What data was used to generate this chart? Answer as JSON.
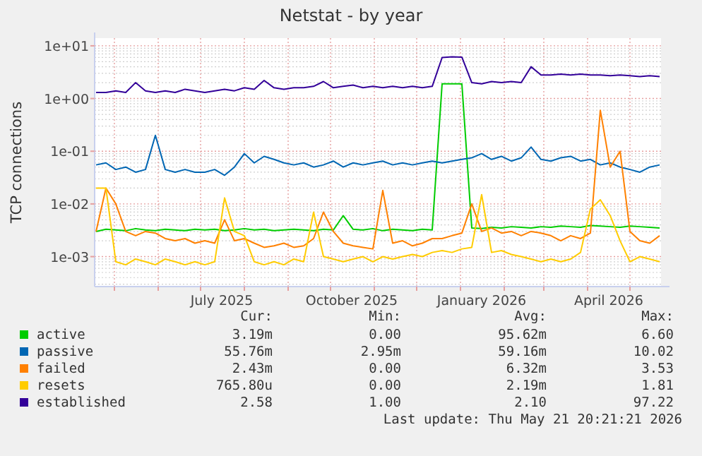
{
  "chart_data": {
    "type": "line",
    "title": "Netstat - by year",
    "ylabel": "TCP connections",
    "log": "y",
    "grid": true,
    "legend": "bottom",
    "marker": "none",
    "line_style": "solid",
    "xlim": [
      "2025-04-17",
      "2026-05-23"
    ],
    "xticks": [
      {
        "value": "2025-05-01",
        "label": null
      },
      {
        "value": "2025-06-01",
        "label": null
      },
      {
        "value": "2025-07-01",
        "label": null
      },
      {
        "value": "2025-07-16",
        "label": "July 2025"
      },
      {
        "value": "2025-08-01",
        "label": null
      },
      {
        "value": "2025-09-01",
        "label": null
      },
      {
        "value": "2025-10-01",
        "label": null
      },
      {
        "value": "2025-10-16",
        "label": "October 2025"
      },
      {
        "value": "2025-11-01",
        "label": null
      },
      {
        "value": "2025-12-01",
        "label": null
      },
      {
        "value": "2026-01-01",
        "label": null
      },
      {
        "value": "2026-01-16",
        "label": "January 2026"
      },
      {
        "value": "2026-02-01",
        "label": null
      },
      {
        "value": "2026-03-01",
        "label": null
      },
      {
        "value": "2026-04-01",
        "label": null
      },
      {
        "value": "2026-04-16",
        "label": "April 2026"
      },
      {
        "value": "2026-05-01",
        "label": null
      }
    ],
    "ylim": [
      0.00027,
      14
    ],
    "yticks": [
      {
        "value": 0.001,
        "label": "1e-03"
      },
      {
        "value": 0.01,
        "label": "1e-02"
      },
      {
        "value": 0.1,
        "label": "1e-01"
      },
      {
        "value": 1,
        "label": "1e+00"
      },
      {
        "value": 10,
        "label": "1e+01"
      }
    ],
    "x": [
      "2025-04-18",
      "2025-04-25",
      "2025-05-02",
      "2025-05-09",
      "2025-05-16",
      "2025-05-23",
      "2025-05-30",
      "2025-06-06",
      "2025-06-13",
      "2025-06-20",
      "2025-06-27",
      "2025-07-04",
      "2025-07-11",
      "2025-07-18",
      "2025-07-25",
      "2025-08-01",
      "2025-08-08",
      "2025-08-15",
      "2025-08-22",
      "2025-08-29",
      "2025-09-05",
      "2025-09-12",
      "2025-09-19",
      "2025-09-26",
      "2025-10-03",
      "2025-10-10",
      "2025-10-17",
      "2025-10-24",
      "2025-10-31",
      "2025-11-07",
      "2025-11-14",
      "2025-11-21",
      "2025-11-28",
      "2025-12-05",
      "2025-12-12",
      "2025-12-19",
      "2025-12-26",
      "2026-01-02",
      "2026-01-09",
      "2026-01-16",
      "2026-01-23",
      "2026-01-30",
      "2026-02-06",
      "2026-02-13",
      "2026-02-20",
      "2026-02-27",
      "2026-03-06",
      "2026-03-13",
      "2026-03-20",
      "2026-03-27",
      "2026-04-03",
      "2026-04-10",
      "2026-04-17",
      "2026-04-24",
      "2026-05-01",
      "2026-05-08",
      "2026-05-15",
      "2026-05-22"
    ],
    "series": [
      {
        "name": "active",
        "color": "#00cc00",
        "values": [
          0.003,
          0.0033,
          0.0032,
          0.0031,
          0.0034,
          0.0032,
          0.0031,
          0.0033,
          0.0032,
          0.0031,
          0.0033,
          0.0032,
          0.0033,
          0.0031,
          0.0032,
          0.0034,
          0.0032,
          0.0033,
          0.0031,
          0.0032,
          0.0033,
          0.0032,
          0.0031,
          0.0033,
          0.0032,
          0.006,
          0.0033,
          0.0032,
          0.0034,
          0.0031,
          0.0033,
          0.0032,
          0.0031,
          0.0033,
          0.0032,
          1.9,
          1.9,
          1.9,
          0.0035,
          0.0034,
          0.0036,
          0.0035,
          0.0037,
          0.0036,
          0.0035,
          0.0037,
          0.0036,
          0.0038,
          0.0037,
          0.0036,
          0.0039,
          0.0038,
          0.0037,
          0.0036,
          0.0038,
          0.0037,
          0.0036,
          0.0035
        ]
      },
      {
        "name": "passive",
        "color": "#0066b3",
        "values": [
          0.055,
          0.06,
          0.045,
          0.05,
          0.04,
          0.045,
          0.2,
          0.045,
          0.04,
          0.045,
          0.04,
          0.04,
          0.045,
          0.035,
          0.05,
          0.09,
          0.06,
          0.08,
          0.07,
          0.06,
          0.055,
          0.06,
          0.05,
          0.055,
          0.065,
          0.05,
          0.06,
          0.055,
          0.06,
          0.065,
          0.055,
          0.06,
          0.055,
          0.06,
          0.065,
          0.06,
          0.065,
          0.07,
          0.075,
          0.09,
          0.07,
          0.08,
          0.065,
          0.075,
          0.12,
          0.07,
          0.065,
          0.075,
          0.08,
          0.065,
          0.07,
          0.055,
          0.06,
          0.05,
          0.045,
          0.04,
          0.05,
          0.055
        ]
      },
      {
        "name": "failed",
        "color": "#ff8000",
        "values": [
          0.003,
          0.02,
          0.01,
          0.003,
          0.0025,
          0.003,
          0.0028,
          0.0022,
          0.002,
          0.0022,
          0.0018,
          0.002,
          0.0018,
          0.005,
          0.002,
          0.0022,
          0.0018,
          0.0015,
          0.0016,
          0.0018,
          0.0015,
          0.0016,
          0.0022,
          0.007,
          0.003,
          0.0018,
          0.0016,
          0.0015,
          0.0014,
          0.018,
          0.0018,
          0.002,
          0.0016,
          0.0018,
          0.0022,
          0.0022,
          0.0025,
          0.0028,
          0.01,
          0.003,
          0.0035,
          0.0028,
          0.003,
          0.0025,
          0.003,
          0.0028,
          0.0025,
          0.002,
          0.0025,
          0.0022,
          0.0028,
          0.6,
          0.05,
          0.1,
          0.003,
          0.002,
          0.0018,
          0.0025
        ]
      },
      {
        "name": "resets",
        "color": "#ffcc00",
        "values": [
          0.02,
          0.02,
          0.0008,
          0.0007,
          0.0009,
          0.0008,
          0.0007,
          0.0009,
          0.0008,
          0.0007,
          0.0008,
          0.0007,
          0.0008,
          0.013,
          0.003,
          0.0025,
          0.0008,
          0.0007,
          0.0008,
          0.0007,
          0.0009,
          0.0008,
          0.007,
          0.001,
          0.0009,
          0.0008,
          0.0009,
          0.001,
          0.0008,
          0.001,
          0.0009,
          0.001,
          0.0011,
          0.001,
          0.0012,
          0.0013,
          0.0012,
          0.0014,
          0.0015,
          0.015,
          0.0012,
          0.0013,
          0.0011,
          0.001,
          0.0009,
          0.0008,
          0.0009,
          0.0008,
          0.0009,
          0.0012,
          0.008,
          0.012,
          0.006,
          0.002,
          0.0008,
          0.001,
          0.0009,
          0.0008
        ]
      },
      {
        "name": "established",
        "color": "#330099",
        "values": [
          1.3,
          1.3,
          1.4,
          1.3,
          2.0,
          1.4,
          1.3,
          1.4,
          1.3,
          1.5,
          1.4,
          1.3,
          1.4,
          1.5,
          1.4,
          1.6,
          1.5,
          2.2,
          1.6,
          1.5,
          1.6,
          1.6,
          1.7,
          2.1,
          1.6,
          1.7,
          1.8,
          1.6,
          1.7,
          1.6,
          1.7,
          1.6,
          1.7,
          1.6,
          1.7,
          6.0,
          6.2,
          6.1,
          2.0,
          1.9,
          2.1,
          2.0,
          2.1,
          2.0,
          4.0,
          2.8,
          2.8,
          2.9,
          2.8,
          2.9,
          2.8,
          2.8,
          2.7,
          2.8,
          2.7,
          2.6,
          2.7,
          2.6
        ]
      }
    ],
    "annotations": [
      "Cur:",
      "Min:",
      "Avg:",
      "Max:",
      "3.19m",
      "0.00",
      "95.62m",
      "6.60",
      "55.76m",
      "2.95m",
      "59.16m",
      "10.02",
      "2.43m",
      "0.00",
      "6.32m",
      "3.53",
      "765.80u",
      "0.00",
      "2.19m",
      "1.81",
      "2.58",
      "1.00",
      "2.10",
      "97.22",
      "Last update: Thu May 21 20:21:21 2026"
    ]
  }
}
